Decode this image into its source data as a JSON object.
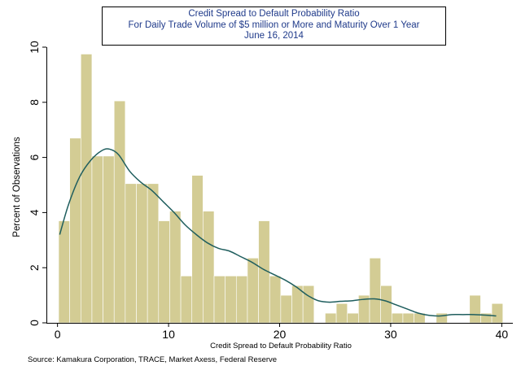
{
  "title_lines": [
    "Credit Spread to Default Probability Ratio",
    "For Daily Trade Volume of $5 million or More and Maturity Over 1 Year",
    "June 16, 2014"
  ],
  "source_note": "Source: Kamakura Corporation, TRACE, Market Axess, Federal Reserve",
  "colors": {
    "bar_fill": "#d3cc94",
    "bar_stroke": "#ffffff",
    "kde_line": "#1f5e5e",
    "title_text": "#1f3a8a"
  },
  "chart_data": {
    "type": "bar",
    "subtype": "histogram_with_density",
    "xlabel": "Credit Spread to Default Probability Ratio",
    "ylabel": "Percent of Observations",
    "xlim": [
      -1,
      41
    ],
    "ylim": [
      0,
      10
    ],
    "xticks": [
      0,
      10,
      20,
      30,
      40
    ],
    "yticks": [
      0,
      2,
      4,
      6,
      8,
      10
    ],
    "grid": false,
    "legend": "none",
    "bin_width": 1,
    "bins": [
      {
        "x0": 0.1,
        "value": 3.7
      },
      {
        "x0": 1.1,
        "value": 6.7
      },
      {
        "x0": 2.1,
        "value": 9.75
      },
      {
        "x0": 3.1,
        "value": 6.05
      },
      {
        "x0": 4.1,
        "value": 6.05
      },
      {
        "x0": 5.1,
        "value": 8.05
      },
      {
        "x0": 6.1,
        "value": 5.05
      },
      {
        "x0": 7.1,
        "value": 5.05
      },
      {
        "x0": 8.1,
        "value": 5.05
      },
      {
        "x0": 9.1,
        "value": 3.7
      },
      {
        "x0": 10.1,
        "value": 4.05
      },
      {
        "x0": 11.1,
        "value": 1.7
      },
      {
        "x0": 12.1,
        "value": 5.35
      },
      {
        "x0": 13.1,
        "value": 4.05
      },
      {
        "x0": 14.1,
        "value": 1.7
      },
      {
        "x0": 15.1,
        "value": 1.7
      },
      {
        "x0": 16.1,
        "value": 1.7
      },
      {
        "x0": 17.1,
        "value": 2.35
      },
      {
        "x0": 18.1,
        "value": 3.7
      },
      {
        "x0": 19.1,
        "value": 1.7
      },
      {
        "x0": 20.1,
        "value": 1.0
      },
      {
        "x0": 21.1,
        "value": 1.35
      },
      {
        "x0": 22.1,
        "value": 1.35
      },
      {
        "x0": 24.1,
        "value": 0.35
      },
      {
        "x0": 25.1,
        "value": 0.7
      },
      {
        "x0": 26.1,
        "value": 0.35
      },
      {
        "x0": 27.1,
        "value": 1.0
      },
      {
        "x0": 28.1,
        "value": 2.35
      },
      {
        "x0": 29.1,
        "value": 1.35
      },
      {
        "x0": 30.1,
        "value": 0.35
      },
      {
        "x0": 31.1,
        "value": 0.35
      },
      {
        "x0": 32.1,
        "value": 0.35
      },
      {
        "x0": 34.1,
        "value": 0.35
      },
      {
        "x0": 37.1,
        "value": 1.0
      },
      {
        "x0": 38.1,
        "value": 0.35
      },
      {
        "x0": 39.1,
        "value": 0.7
      }
    ],
    "density_curve": {
      "x": [
        0.2,
        1,
        2,
        3,
        4,
        4.7,
        5.5,
        6.5,
        7.5,
        8.5,
        9.5,
        10.5,
        11.5,
        12.5,
        13.5,
        14.5,
        15.5,
        16.5,
        17.5,
        18.5,
        19.5,
        20.5,
        21.5,
        22.5,
        23.5,
        24.5,
        25.5,
        26.5,
        27.5,
        28.5,
        29.5,
        30.5,
        31.5,
        32.5,
        33.5,
        34.5,
        35.5,
        36.5,
        37.5,
        38.5,
        39.5
      ],
      "y": [
        3.2,
        4.3,
        5.3,
        5.9,
        6.25,
        6.3,
        6.1,
        5.5,
        5.1,
        4.8,
        4.4,
        4.0,
        3.55,
        3.2,
        2.9,
        2.7,
        2.6,
        2.4,
        2.2,
        1.95,
        1.75,
        1.55,
        1.3,
        1.0,
        0.8,
        0.75,
        0.78,
        0.8,
        0.85,
        0.87,
        0.8,
        0.65,
        0.5,
        0.35,
        0.27,
        0.25,
        0.3,
        0.3,
        0.3,
        0.28,
        0.25
      ]
    }
  }
}
